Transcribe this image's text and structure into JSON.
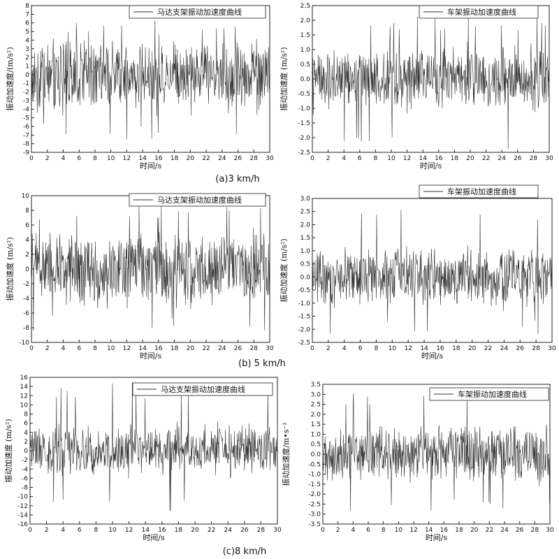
{
  "captions": [
    "(a)3 km/h",
    "(b) 5 km/h",
    "(c)8 km/h"
  ],
  "chart_data": [
    {
      "type": "line",
      "legend": "马达支架振动加速度曲线",
      "xlabel": "时间/s",
      "ylabel": "振动加速度/(m/s²)",
      "xlim": [
        0,
        30
      ],
      "ylim": [
        -9,
        8
      ],
      "xticks": [
        "0",
        "2",
        "4",
        "6",
        "8",
        "10",
        "12",
        "14",
        "16",
        "18",
        "20",
        "22",
        "24",
        "26",
        "28",
        "30"
      ],
      "yticks": [
        "8",
        "7",
        "6",
        "5",
        "4",
        "3",
        "2",
        "1",
        "0",
        "-1",
        "-2",
        "-3",
        "-4",
        "-5",
        "-6",
        "-7",
        "-8",
        "-9"
      ],
      "amplitude": 3.2,
      "peak_max": 6.5,
      "peak_min": -7.5,
      "series": [
        {
          "x_range": [
            0,
            30
          ],
          "approx_points": 600
        }
      ]
    },
    {
      "type": "line",
      "legend": "车架振动加速度曲线",
      "xlabel": "时间/s",
      "ylabel": "振动加速度 (m/s²)",
      "xlim": [
        0,
        30
      ],
      "ylim": [
        -2.5,
        2.5
      ],
      "xticks": [
        "0",
        "2",
        "4",
        "6",
        "8",
        "10",
        "12",
        "14",
        "16",
        "18",
        "20",
        "22",
        "24",
        "26",
        "28",
        "30"
      ],
      "yticks": [
        "2.5",
        "2.0",
        "1.5",
        "1.0",
        "0.5",
        "0.0",
        "-0.5",
        "-1.0",
        "-1.5",
        "-2.0",
        "-2.5"
      ],
      "amplitude": 0.85,
      "peak_max": 2.2,
      "peak_min": -2.4,
      "series": [
        {
          "x_range": [
            0,
            30
          ],
          "approx_points": 600
        }
      ]
    },
    {
      "type": "line",
      "legend": "马达支架振动加速度曲线",
      "xlabel": "时间/s",
      "ylabel": "振动加速度 (m/s²)",
      "xlim": [
        0,
        30
      ],
      "ylim": [
        -10,
        10
      ],
      "xticks": [
        "0",
        "2",
        "4",
        "6",
        "8",
        "10",
        "12",
        "14",
        "16",
        "18",
        "20",
        "22",
        "24",
        "26",
        "28",
        "30"
      ],
      "yticks": [
        "10",
        "8",
        "6",
        "4",
        "2",
        "0",
        "-2",
        "-4",
        "-6",
        "-8",
        "-10"
      ],
      "amplitude": 4.0,
      "peak_max": 9.0,
      "peak_min": -8.5,
      "series": [
        {
          "x_range": [
            0,
            30
          ],
          "approx_points": 600
        }
      ]
    },
    {
      "type": "line",
      "legend": "车架振动加速度曲线",
      "xlabel": "时间/s",
      "ylabel": "振动加速度 (m/s²)",
      "xlim": [
        0,
        30
      ],
      "ylim": [
        -2.5,
        3.0
      ],
      "xticks": [
        "0",
        "2",
        "4",
        "6",
        "8",
        "10",
        "12",
        "14",
        "16",
        "18",
        "20",
        "22",
        "24",
        "26",
        "28",
        "30"
      ],
      "yticks": [
        "3.0",
        "2.5",
        "2.0",
        "1.5",
        "1.0",
        "0.5",
        "0.0",
        "-0.5",
        "-1.0",
        "-1.5",
        "-2.0",
        "-2.5"
      ],
      "amplitude": 0.9,
      "peak_max": 2.8,
      "peak_min": -2.2,
      "series": [
        {
          "x_range": [
            0,
            30
          ],
          "approx_points": 600
        }
      ]
    },
    {
      "type": "line",
      "legend": "马达支架振动加速度曲线",
      "xlabel": "时间/s",
      "ylabel": "振动加速度 (m/s²)",
      "xlim": [
        0,
        30
      ],
      "ylim": [
        -16,
        16
      ],
      "xticks": [
        "0",
        "2",
        "4",
        "6",
        "8",
        "10",
        "12",
        "14",
        "16",
        "18",
        "20",
        "22",
        "24",
        "26",
        "28",
        "30"
      ],
      "yticks": [
        "16",
        "14",
        "12",
        "10",
        "8",
        "6",
        "4",
        "2",
        "0",
        "-2",
        "-4",
        "-6",
        "-8",
        "-10",
        "-12",
        "-14",
        "-16"
      ],
      "amplitude": 4.5,
      "peak_max": 15.0,
      "peak_min": -13.5,
      "series": [
        {
          "x_range": [
            0,
            30
          ],
          "approx_points": 600
        }
      ]
    },
    {
      "type": "line",
      "legend": "车架振动加速度曲线",
      "xlabel": "时间/s",
      "ylabel": "振动加速度/m•s⁻²",
      "xlim": [
        0,
        30
      ],
      "ylim": [
        -3.5,
        3.5
      ],
      "xticks": [
        "0",
        "2",
        "4",
        "6",
        "8",
        "10",
        "12",
        "14",
        "16",
        "18",
        "20",
        "22",
        "24",
        "26",
        "28",
        "30"
      ],
      "yticks": [
        "3.5",
        "3.0",
        "2.5",
        "2.0",
        "1.5",
        "1.0",
        "0.5",
        "0.0",
        "-0.5",
        "-1.0",
        "-1.5",
        "-2.0",
        "-2.5",
        "-3.0",
        "-3.5"
      ],
      "amplitude": 1.1,
      "peak_max": 3.1,
      "peak_min": -2.9,
      "series": [
        {
          "x_range": [
            0,
            30
          ],
          "approx_points": 600
        }
      ]
    }
  ]
}
